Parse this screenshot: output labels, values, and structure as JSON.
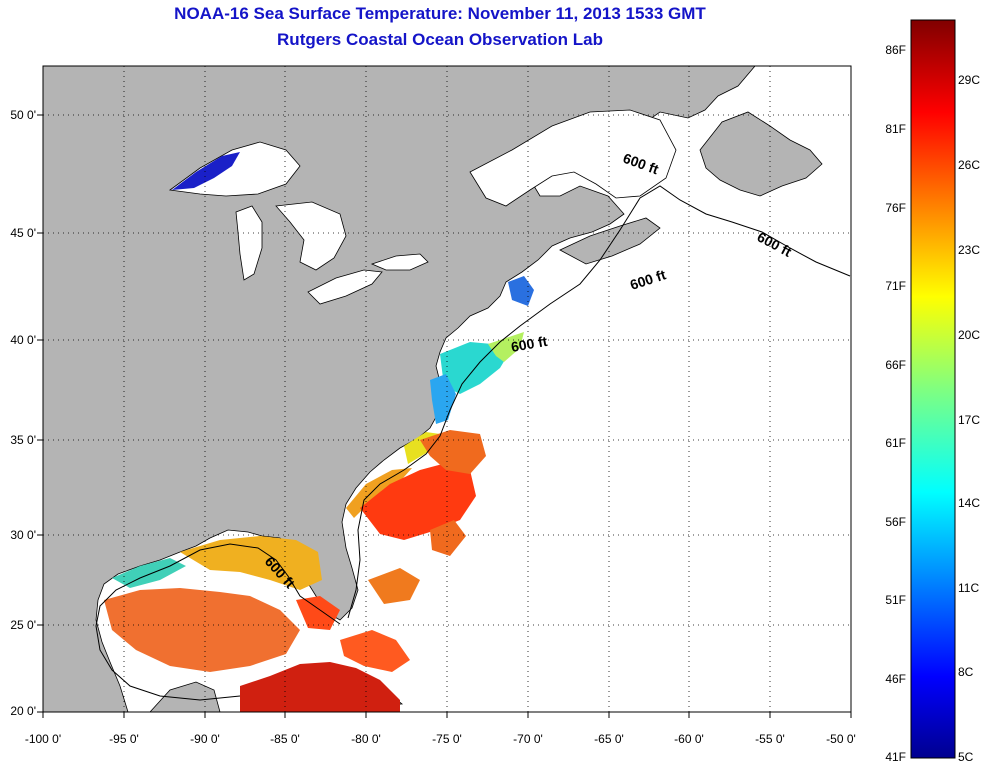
{
  "title": {
    "line1": "NOAA-16 Sea Surface Temperature:  November 11, 2013 1533 GMT",
    "line2": "Rutgers Coastal Ocean Observation Lab"
  },
  "map": {
    "lon_range": [
      -100,
      -50
    ],
    "lat_range": [
      20,
      52.5
    ],
    "latitude_ticks": [
      "50 0'",
      "45 0'",
      "40 0'",
      "35 0'",
      "30 0'",
      "25 0'",
      "20 0'"
    ],
    "longitude_ticks": [
      "-100 0'",
      "-95 0'",
      "-90 0'",
      "-85 0'",
      "-80 0'",
      "-75 0'",
      "-70 0'",
      "-65 0'",
      "-60 0'",
      "-55 0'",
      "-50 0'"
    ],
    "contour_labels": [
      "600 ft",
      "600 ft",
      "600 ft",
      "600 ft",
      "600 ft"
    ],
    "grid": "dotted",
    "colors": {
      "land": "#b4b4b4",
      "ocean_no_data": "#ffffff",
      "title": "#1414c8"
    }
  },
  "colorbar": {
    "fahrenheit": [
      "86F",
      "81F",
      "76F",
      "71F",
      "66F",
      "61F",
      "56F",
      "51F",
      "46F",
      "41F"
    ],
    "celsius": [
      "29C",
      "26C",
      "23C",
      "20C",
      "17C",
      "14C",
      "11C",
      "8C",
      "5C"
    ],
    "range_c": [
      5,
      31
    ],
    "colormap": "jet"
  }
}
